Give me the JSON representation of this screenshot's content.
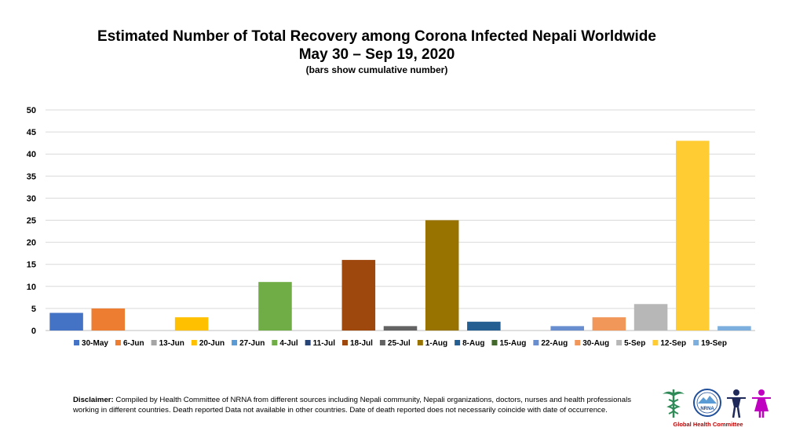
{
  "chart_data": {
    "type": "bar",
    "title": "Estimated Number of Total Recovery among Corona Infected Nepali Worldwide",
    "subtitle": "May 30 – Sep 19, 2020",
    "note": "(bars show cumulative number)",
    "xlabel": "",
    "ylabel": "",
    "ylim": [
      0,
      50
    ],
    "yticks": [
      0,
      5,
      10,
      15,
      20,
      25,
      30,
      35,
      40,
      45,
      50
    ],
    "grid": true,
    "legend_position": "bottom",
    "categories": [
      "30-May",
      "6-Jun",
      "13-Jun",
      "20-Jun",
      "27-Jun",
      "4-Jul",
      "11-Jul",
      "18-Jul",
      "25-Jul",
      "1-Aug",
      "8-Aug",
      "15-Aug",
      "22-Aug",
      "30-Aug",
      "5-Sep",
      "12-Sep",
      "19-Sep"
    ],
    "values": [
      4,
      5,
      0,
      3,
      0,
      11,
      0,
      16,
      1,
      25,
      2,
      0,
      1,
      3,
      6,
      43,
      1
    ],
    "colors": [
      "#4472C4",
      "#ED7D31",
      "#A5A5A5",
      "#FFC000",
      "#5B9BD5",
      "#70AD47",
      "#264478",
      "#9E480E",
      "#636363",
      "#997300",
      "#255E91",
      "#43682B",
      "#698ED0",
      "#F1975A",
      "#B7B7B7",
      "#FFCD33",
      "#7CAFDD"
    ]
  },
  "disclaimer": {
    "label": "Disclaimer:",
    "text": " Compiled by Health Committee of NRNA from different sources including Nepali community, Nepali organizations, doctors, nurses and health professionals working in different countries. Death reported Data not available in other countries. Date of death reported does not necessarily coincide with date of occurrence."
  },
  "logo": {
    "seal_text": "NRNA",
    "caption": "Global Health Committee"
  }
}
